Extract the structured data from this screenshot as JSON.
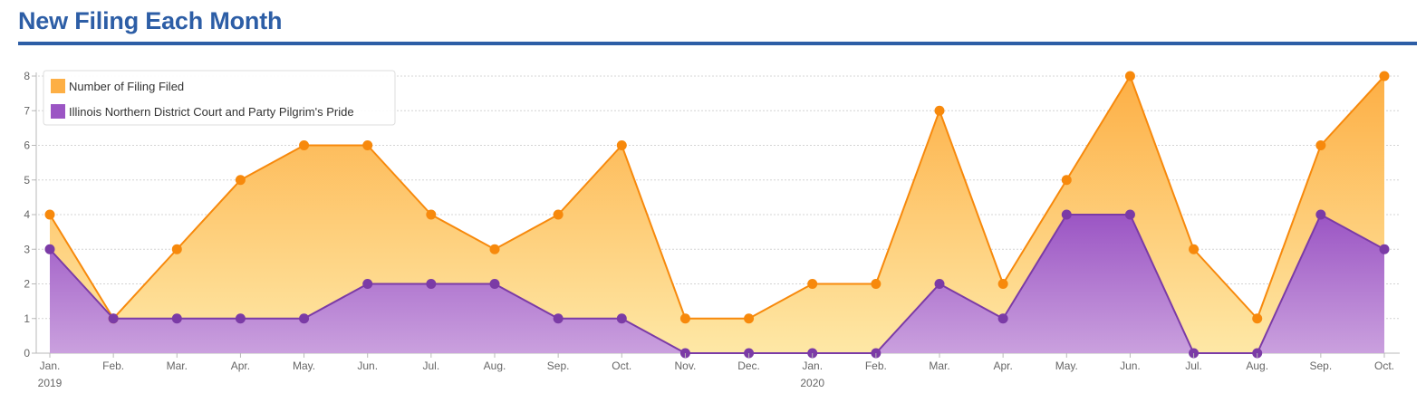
{
  "page": {
    "title": "New Filing Each Month"
  },
  "chart_data": {
    "type": "area",
    "categories": [
      "Jan.",
      "Feb.",
      "Mar.",
      "Apr.",
      "May.",
      "Jun.",
      "Jul.",
      "Aug.",
      "Sep.",
      "Oct.",
      "Nov.",
      "Dec.",
      "Jan.",
      "Feb.",
      "Mar.",
      "Apr.",
      "May.",
      "Jun.",
      "Jul.",
      "Aug.",
      "Sep.",
      "Oct."
    ],
    "year_labels": [
      {
        "index": 0,
        "label": "2019"
      },
      {
        "index": 12,
        "label": "2020"
      }
    ],
    "series": [
      {
        "name": "Number of Filing Filed",
        "color": "#f7890c",
        "fill_top": "#fdaf45",
        "fill_bottom": "#fee8a6",
        "values": [
          4,
          1,
          3,
          5,
          6,
          6,
          4,
          3,
          4,
          6,
          1,
          1,
          2,
          2,
          7,
          2,
          5,
          8,
          3,
          1,
          6,
          8
        ]
      },
      {
        "name": "Illinois Northern District Court and Party Pilgrim's Pride",
        "color": "#7b3ba6",
        "fill_top": "#9b55c4",
        "fill_bottom": "#caa0de",
        "values": [
          3,
          1,
          1,
          1,
          1,
          2,
          2,
          2,
          1,
          1,
          0,
          0,
          0,
          0,
          2,
          1,
          4,
          4,
          0,
          0,
          4,
          3
        ]
      }
    ],
    "ylim": [
      0,
      8
    ],
    "yticks": [
      "0",
      "1",
      "2",
      "3",
      "4",
      "5",
      "6",
      "7",
      "8"
    ],
    "grid": true,
    "legend_position": "top-left"
  }
}
